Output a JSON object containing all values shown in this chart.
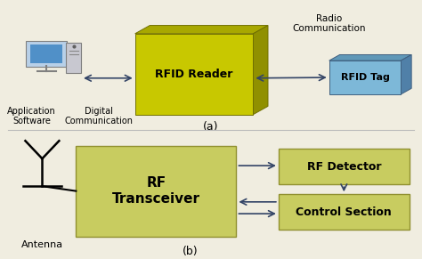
{
  "bg_color": "#f0ede0",
  "rfid_reader_face": "#c8c800",
  "rfid_reader_side": "#909000",
  "rfid_reader_top": "#a8a800",
  "rfid_tag_face": "#7db8d8",
  "rfid_tag_side": "#5080a8",
  "rfid_tag_top": "#6098b8",
  "box_yellow": "#c8cc60",
  "box_yellow_edge": "#909030",
  "divider_color": "#bbbbbb",
  "top_label": "(a)",
  "bottom_label": "(b)",
  "rfid_reader_text": "RFID Reader",
  "rfid_tag_text": "RFID Tag",
  "app_software_text": "Application\nSoftware",
  "digital_comm_text": "Digital\nCommunication",
  "radio_comm_text": "Radio\nCommunication",
  "antenna_text": "Antenna",
  "rf_transceiver_text": "RF\nTransceiver",
  "rf_detector_text": "RF Detector",
  "control_section_text": "Control Section",
  "arrow_color": "#334466"
}
